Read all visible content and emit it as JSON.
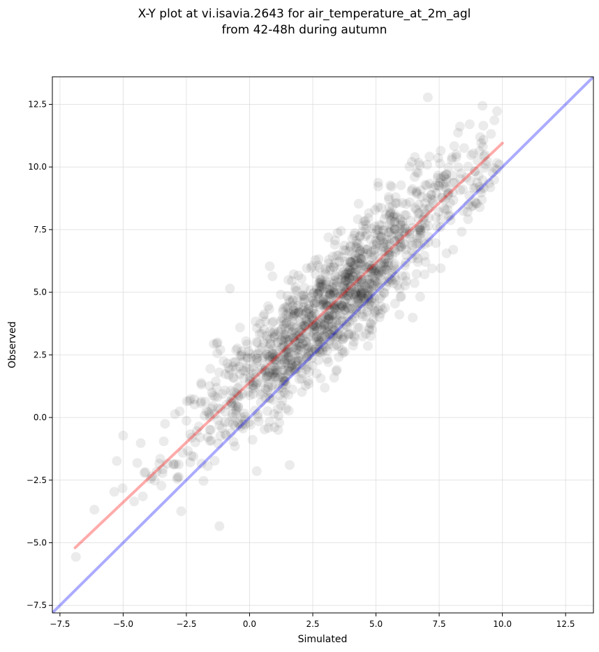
{
  "chart_data": {
    "type": "scatter",
    "title": "X-Y plot at vi.isavia.2643 for air_temperature_at_2m_agl",
    "subtitle": "from 42-48h during autumn",
    "xlabel": "Simulated",
    "ylabel": "Observed",
    "xlim": [
      -7.8,
      13.6
    ],
    "ylim": [
      -7.8,
      13.6
    ],
    "xticks": [
      -7.5,
      -5.0,
      -2.5,
      0.0,
      2.5,
      5.0,
      7.5,
      10.0,
      12.5
    ],
    "yticks": [
      -7.5,
      -5.0,
      -2.5,
      0.0,
      2.5,
      5.0,
      7.5,
      10.0,
      12.5
    ],
    "grid": true,
    "points_color": "#000000",
    "series": [
      {
        "type": "line",
        "color": "#ff0000",
        "x": [
          -6.9,
          10.0
        ],
        "y": [
          -5.2,
          10.95
        ]
      },
      {
        "type": "line",
        "color": "#0000ff",
        "x": [
          -7.8,
          13.6
        ],
        "y": [
          -7.8,
          13.6
        ]
      }
    ]
  }
}
